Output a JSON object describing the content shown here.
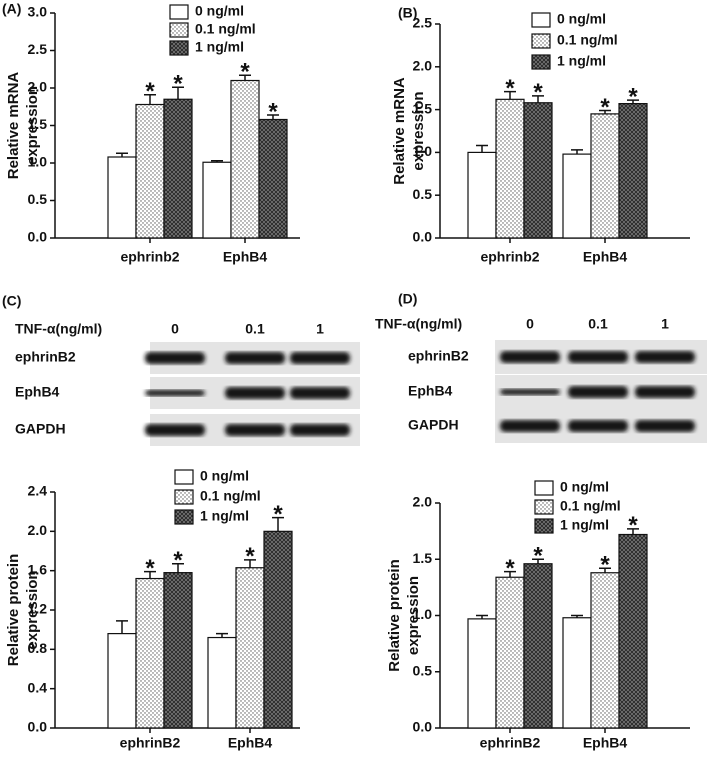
{
  "chart_data": [
    {
      "type": "bar",
      "panel": "(A)",
      "ylabel": [
        "Relative mRNA",
        "expression"
      ],
      "categories": [
        "ephrinb2",
        "EphB4"
      ],
      "ylim": [
        0,
        3
      ],
      "yticks": [
        {
          "value": 0,
          "label": "0.0"
        },
        0.5,
        {
          "value": 1,
          "label": "1.0"
        },
        1.5,
        {
          "value": 2,
          "label": "2.0"
        },
        2.5,
        {
          "value": 3,
          "label": "3.0"
        }
      ],
      "series": [
        {
          "name": "0 ng/ml",
          "color": "#ffffff",
          "pattern": "none",
          "values": [
            1.08,
            1.01
          ],
          "errors": [
            0.05,
            0.02
          ],
          "significance": [
            null,
            null
          ]
        },
        {
          "name": "0.1 ng/ml",
          "color": "#ffffff",
          "pattern": "dots",
          "values": [
            1.78,
            2.1
          ],
          "errors": [
            0.13,
            0.07
          ],
          "significance": [
            "*",
            "*"
          ]
        },
        {
          "name": "1 ng/ml",
          "color": "#777777",
          "pattern": "crosshatch",
          "values": [
            1.85,
            1.58
          ],
          "errors": [
            0.16,
            0.06
          ],
          "significance": [
            "*",
            "*"
          ]
        }
      ]
    },
    {
      "type": "bar",
      "panel": "(B)",
      "ylabel": [
        "Relative mRNA",
        "expression"
      ],
      "categories": [
        "ephrinb2",
        "EphB4"
      ],
      "ylim": [
        0,
        2.5
      ],
      "yticks": [
        {
          "value": 0,
          "label": "0.0"
        },
        0.5,
        {
          "value": 1,
          "label": "1.0"
        },
        1.5,
        {
          "value": 2,
          "label": "2.0"
        },
        2.5
      ],
      "series": [
        {
          "name": "0 ng/ml",
          "color": "#ffffff",
          "pattern": "none",
          "values": [
            1.0,
            0.98
          ],
          "errors": [
            0.08,
            0.05
          ],
          "significance": [
            null,
            null
          ]
        },
        {
          "name": "0.1 ng/ml",
          "color": "#ffffff",
          "pattern": "dots",
          "values": [
            1.62,
            1.45
          ],
          "errors": [
            0.09,
            0.04
          ],
          "significance": [
            "*",
            "*"
          ]
        },
        {
          "name": "1 ng/ml",
          "color": "#777777",
          "pattern": "crosshatch",
          "values": [
            1.58,
            1.57
          ],
          "errors": [
            0.08,
            0.04
          ],
          "significance": [
            "*",
            "*"
          ]
        }
      ]
    },
    {
      "type": "bar",
      "ylabel": [
        "Relative protein",
        "expression"
      ],
      "categories": [
        "ephrinB2",
        "EphB4"
      ],
      "ylim": [
        0,
        2.4
      ],
      "yticks": [
        {
          "value": 0,
          "label": "0.0"
        },
        0.4,
        0.8,
        1.2,
        1.6,
        {
          "value": 2,
          "label": "2.0"
        },
        2.4
      ],
      "series": [
        {
          "name": "0 ng/ml",
          "color": "#ffffff",
          "pattern": "none",
          "values": [
            0.96,
            0.92
          ],
          "errors": [
            0.13,
            0.04
          ],
          "significance": [
            null,
            null
          ]
        },
        {
          "name": "0.1 ng/ml",
          "color": "#ffffff",
          "pattern": "dots",
          "values": [
            1.52,
            1.63
          ],
          "errors": [
            0.07,
            0.08
          ],
          "significance": [
            "*",
            "*"
          ]
        },
        {
          "name": "1 ng/ml",
          "color": "#777777",
          "pattern": "crosshatch",
          "values": [
            1.58,
            2.0
          ],
          "errors": [
            0.09,
            0.14
          ],
          "significance": [
            "*",
            "*"
          ]
        }
      ]
    },
    {
      "type": "bar",
      "ylabel": [
        "Relative protein",
        "expression"
      ],
      "categories": [
        "ephrinB2",
        "EphB4"
      ],
      "ylim": [
        0,
        2
      ],
      "yticks": [
        {
          "value": 0,
          "label": "0.0"
        },
        0.5,
        {
          "value": 1,
          "label": "1.0"
        },
        1.5,
        {
          "value": 2,
          "label": "2.0"
        }
      ],
      "series": [
        {
          "name": "0 ng/ml",
          "color": "#ffffff",
          "pattern": "none",
          "values": [
            0.97,
            0.98
          ],
          "errors": [
            0.03,
            0.02
          ],
          "significance": [
            null,
            null
          ]
        },
        {
          "name": "0.1 ng/ml",
          "color": "#ffffff",
          "pattern": "dots",
          "values": [
            1.34,
            1.38
          ],
          "errors": [
            0.05,
            0.04
          ],
          "significance": [
            "*",
            "*"
          ]
        },
        {
          "name": "1 ng/ml",
          "color": "#777777",
          "pattern": "crosshatch",
          "values": [
            1.46,
            1.72
          ],
          "errors": [
            0.04,
            0.05
          ],
          "significance": [
            "*",
            "*"
          ]
        }
      ]
    }
  ],
  "blots": [
    {
      "panel": "(C)",
      "header": "TNF-α(ng/ml)",
      "lanes": [
        "0",
        "0.1",
        "1"
      ],
      "rows": [
        "ephrinB2",
        "EphB4",
        "GAPDH"
      ]
    },
    {
      "panel": "(D)",
      "header": "TNF-α(ng/ml)",
      "lanes": [
        "0",
        "0.1",
        "1"
      ],
      "rows": [
        "ephrinB2",
        "EphB4",
        "GAPDH"
      ]
    }
  ]
}
